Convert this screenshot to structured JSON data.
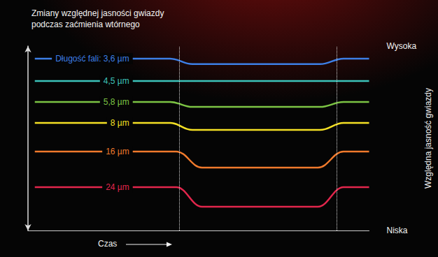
{
  "chart_data": {
    "type": "line",
    "title": "Zmiany względnej jasności gwiazdy\npodczas zaćmienia wtórnego",
    "x_label": "Czas",
    "y_label": "Względna jasność gwiazdy",
    "xlim": [
      0,
      100
    ],
    "ylim": [
      0,
      100
    ],
    "yticks": [
      {
        "value": 0,
        "label": "Niska"
      },
      {
        "value": 100,
        "label": "Wysoka"
      }
    ],
    "tick_labels": "y",
    "grid": false,
    "eclipse_x": [
      44.3,
      90.6
    ],
    "series": [
      {
        "name": "Długość fali: 3,6 µm",
        "color": "#3d7fe6",
        "x": [
          2,
          41.7,
          48.2,
          85.6,
          92.5,
          100
        ],
        "values": [
          93.2,
          93.2,
          90.2,
          90.2,
          93.2,
          93.2
        ]
      },
      {
        "name": "4,5 µm",
        "color": "#3cc4ba",
        "x": [
          2,
          100
        ],
        "values": [
          81.1,
          81.1
        ]
      },
      {
        "name": "5,8 µm",
        "color": "#7cc444",
        "x": [
          2,
          41.7,
          48.2,
          85.6,
          92.5,
          100
        ],
        "values": [
          69.7,
          69.7,
          67.0,
          67.0,
          69.7,
          69.7
        ]
      },
      {
        "name": "8 µm",
        "color": "#f4e024",
        "x": [
          2,
          41.7,
          48.2,
          85.6,
          92.5,
          100
        ],
        "values": [
          58.3,
          58.3,
          54.5,
          54.5,
          58.3,
          58.3
        ]
      },
      {
        "name": "16 µm",
        "color": "#f07a2c",
        "x": [
          2,
          43.5,
          51.0,
          85.0,
          92.5,
          100
        ],
        "values": [
          42.8,
          42.8,
          34.1,
          34.1,
          42.8,
          42.8
        ]
      },
      {
        "name": "24 µm",
        "color": "#e2264c",
        "x": [
          2,
          43.5,
          51.0,
          85.0,
          92.5,
          100
        ],
        "values": [
          23.5,
          23.5,
          12.9,
          12.9,
          23.5,
          23.5
        ]
      }
    ]
  }
}
